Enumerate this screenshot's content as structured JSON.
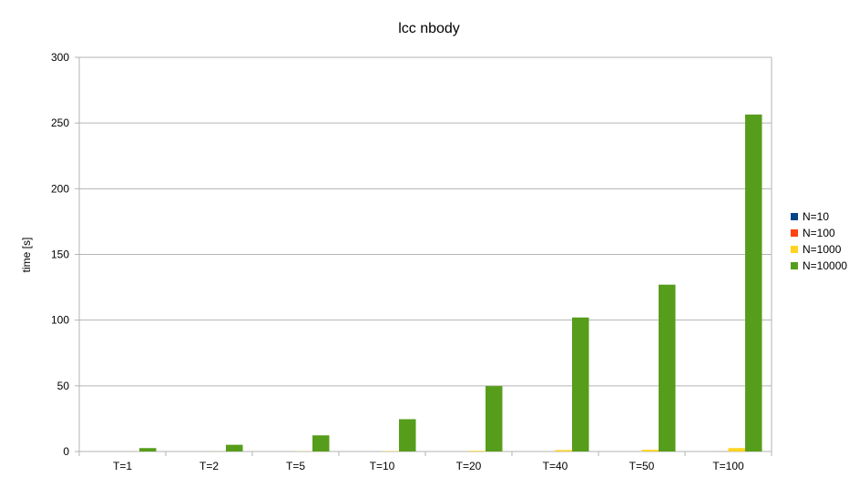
{
  "chart_data": {
    "type": "bar",
    "title": "lcc nbody",
    "xlabel": "",
    "ylabel": "time [s]",
    "categories": [
      "T=1",
      "T=2",
      "T=5",
      "T=10",
      "T=20",
      "T=40",
      "T=50",
      "T=100"
    ],
    "ylim": [
      0,
      300
    ],
    "yticks": [
      0,
      50,
      100,
      150,
      200,
      250,
      300
    ],
    "grid": true,
    "legend_position": "right",
    "series": [
      {
        "name": "N=10",
        "color": "#004586",
        "values": [
          0,
          0,
          0,
          0,
          0,
          0,
          0,
          0
        ]
      },
      {
        "name": "N=100",
        "color": "#ff420e",
        "values": [
          0,
          0,
          0,
          0,
          0,
          0,
          0,
          0.05
        ]
      },
      {
        "name": "N=1000",
        "color": "#ffd320",
        "values": [
          0.03,
          0.05,
          0.13,
          0.26,
          0.5,
          1.1,
          1.3,
          2.6
        ]
      },
      {
        "name": "N=10000",
        "color": "#579d1c",
        "values": [
          2.6,
          5.1,
          12.3,
          24.6,
          49.8,
          102,
          127,
          256.5
        ]
      }
    ]
  }
}
